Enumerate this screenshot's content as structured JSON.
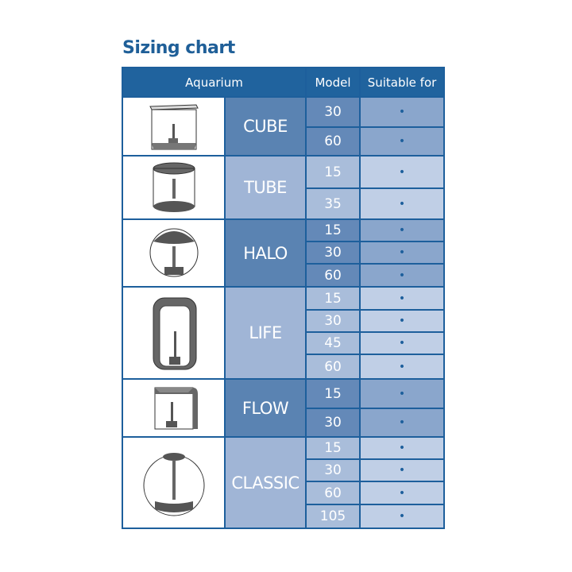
{
  "title": "Sizing chart",
  "headers": {
    "aquarium": "Aquarium",
    "model": "Model",
    "suitable": "Suitable for"
  },
  "dot": "•",
  "colors": {
    "header": "#20639e",
    "border": "#1d5f9c",
    "dot": "#1d5f9c"
  },
  "groups": [
    {
      "name": "CUBE",
      "icon": "cube-aquarium",
      "models": [
        "30",
        "60"
      ]
    },
    {
      "name": "TUBE",
      "icon": "tube-aquarium",
      "models": [
        "15",
        "35"
      ]
    },
    {
      "name": "HALO",
      "icon": "halo-aquarium",
      "models": [
        "15",
        "30",
        "60"
      ]
    },
    {
      "name": "LIFE",
      "icon": "life-aquarium",
      "models": [
        "15",
        "30",
        "45",
        "60"
      ]
    },
    {
      "name": "FLOW",
      "icon": "flow-aquarium",
      "models": [
        "15",
        "30"
      ]
    },
    {
      "name": "CLASSIC",
      "icon": "classic-aquarium",
      "models": [
        "15",
        "30",
        "60",
        "105"
      ]
    }
  ]
}
